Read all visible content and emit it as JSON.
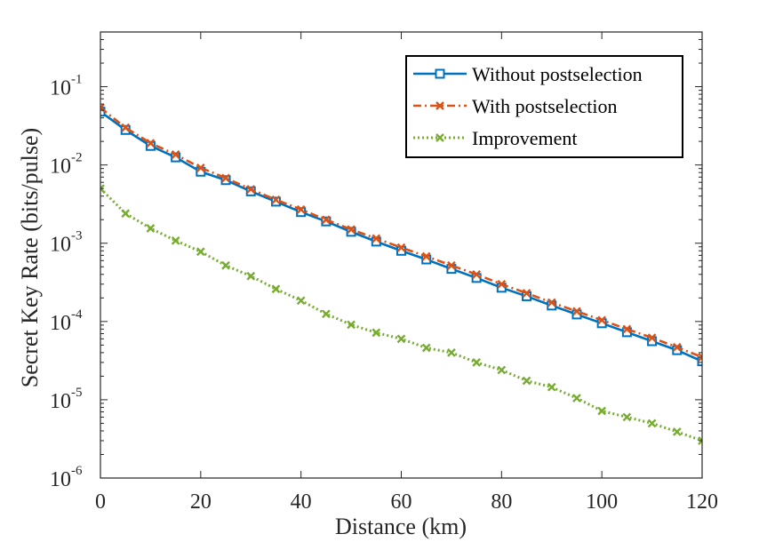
{
  "chart_data": {
    "type": "line",
    "title": "",
    "xlabel": "Distance (km)",
    "ylabel": "Secret Key Rate (bits/pulse)",
    "xscale": "linear",
    "yscale": "log",
    "xlim": [
      0,
      120
    ],
    "ylim": [
      1e-06,
      0.5
    ],
    "xticks": [
      0,
      20,
      40,
      60,
      80,
      100,
      120
    ],
    "xtick_labels": [
      "0",
      "20",
      "40",
      "60",
      "80",
      "100",
      "120"
    ],
    "yticks": [
      1e-06,
      1e-05,
      0.0001,
      0.001,
      0.01,
      0.1
    ],
    "ytick_labels": [
      {
        "base": "10",
        "exp": "-6"
      },
      {
        "base": "10",
        "exp": "-5"
      },
      {
        "base": "10",
        "exp": "-4"
      },
      {
        "base": "10",
        "exp": "-3"
      },
      {
        "base": "10",
        "exp": "-2"
      },
      {
        "base": "10",
        "exp": "-1"
      }
    ],
    "grid": false,
    "legend_position": "top-right",
    "x": [
      0,
      5,
      10,
      15,
      20,
      25,
      30,
      35,
      40,
      45,
      50,
      55,
      60,
      65,
      70,
      75,
      80,
      85,
      90,
      95,
      100,
      105,
      110,
      115,
      120
    ],
    "series": [
      {
        "name": "Without postselection",
        "color": "#0072BD",
        "line_style": "solid",
        "marker": "square",
        "values": [
          0.048,
          0.028,
          0.0175,
          0.0125,
          0.0082,
          0.0064,
          0.0046,
          0.0034,
          0.0025,
          0.0019,
          0.0014,
          0.00105,
          0.0008,
          0.00062,
          0.00047,
          0.00036,
          0.00027,
          0.00021,
          0.00016,
          0.000123,
          9.5e-05,
          7.3e-05,
          5.6e-05,
          4.3e-05,
          3.1e-05
        ]
      },
      {
        "name": "With postselection",
        "color": "#D95319",
        "line_style": "dashdot",
        "marker": "x",
        "values": [
          0.054,
          0.03,
          0.019,
          0.0136,
          0.0092,
          0.0068,
          0.0049,
          0.0036,
          0.0027,
          0.002,
          0.0015,
          0.00115,
          0.00088,
          0.00068,
          0.00052,
          0.0004,
          0.0003,
          0.00023,
          0.000175,
          0.000135,
          0.000104,
          8e-05,
          6.2e-05,
          4.7e-05,
          3.5e-05
        ]
      },
      {
        "name": "Improvement",
        "color": "#77AC30",
        "line_style": "dotted",
        "marker": "x",
        "values": [
          0.005,
          0.0024,
          0.00155,
          0.00108,
          0.00078,
          0.00052,
          0.00038,
          0.00026,
          0.000185,
          0.000125,
          9.1e-05,
          7.2e-05,
          6e-05,
          4.6e-05,
          4e-05,
          3e-05,
          2.4e-05,
          1.75e-05,
          1.45e-05,
          1.05e-05,
          7.2e-06,
          6e-06,
          5e-06,
          3.9e-06,
          3e-06
        ]
      }
    ]
  }
}
